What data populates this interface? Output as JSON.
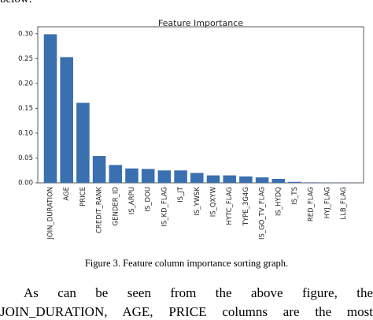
{
  "top_text": "below:",
  "chart_data": {
    "type": "bar",
    "title": "Feature Importance",
    "categories": [
      "JOIN_DURATION",
      "AGE",
      "PRICE",
      "CREDIT_RANK",
      "GENDER_ID",
      "IS_ARPU",
      "IS_DOU",
      "IS_KD_FLAG",
      "IS_JT",
      "IS_YWSK",
      "IS_QXYW",
      "HYTC_FLAG",
      "TYPE_3G4G",
      "IS_GO_TV_FLAG",
      "IS_HYDQ",
      "IS_TS",
      "RED_FLAG",
      "HYJ_FLAG",
      "LLB_FLAG"
    ],
    "values": [
      0.299,
      0.253,
      0.161,
      0.054,
      0.036,
      0.029,
      0.028,
      0.025,
      0.025,
      0.02,
      0.015,
      0.015,
      0.013,
      0.011,
      0.008,
      0.002,
      0.001,
      0.0005,
      0.0003
    ],
    "color": "#3a6fb0",
    "ylim": [
      0,
      0.314
    ],
    "yticks": [
      {
        "value": 0,
        "label": "0.00"
      },
      0.05,
      {
        "value": 0.1,
        "label": "0.10"
      },
      0.15,
      {
        "value": 0.2,
        "label": "0.20"
      },
      0.25,
      {
        "value": 0.3,
        "label": "0.30"
      }
    ]
  },
  "caption": "Figure 3. Feature column importance sorting graph.",
  "body_lines": [
    "As can be seen from the above figure, the",
    "JOIN_DURATION, AGE, PRICE columns are the most"
  ]
}
